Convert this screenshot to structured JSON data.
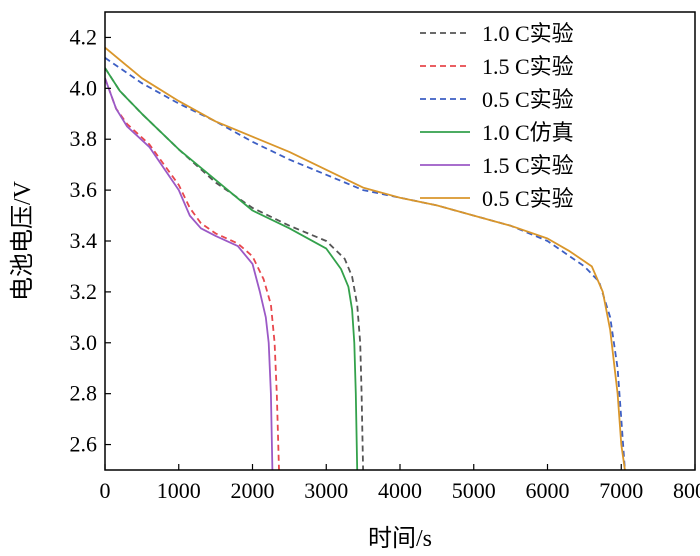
{
  "chart_data": {
    "type": "line",
    "title": "",
    "xlabel": "时间/s",
    "ylabel": "电池电压/V",
    "xlim": [
      0,
      8000
    ],
    "ylim": [
      2.5,
      4.3
    ],
    "x_ticks": [
      0,
      1000,
      2000,
      3000,
      4000,
      5000,
      6000,
      7000,
      8000
    ],
    "y_ticks": [
      2.6,
      2.8,
      3.0,
      3.2,
      3.4,
      3.6,
      3.8,
      4.0,
      4.2
    ],
    "y_tick_labels": [
      "2.6",
      "2.8",
      "3.0",
      "3.2",
      "3.4",
      "3.6",
      "3.8",
      "4.0",
      "4.2"
    ],
    "grid": false,
    "legend_position": "top-right",
    "series": [
      {
        "name": "1.0 C实验",
        "color": "#555555",
        "style": "dashed",
        "points": [
          [
            0,
            4.08
          ],
          [
            200,
            3.99
          ],
          [
            500,
            3.9
          ],
          [
            1000,
            3.76
          ],
          [
            1500,
            3.63
          ],
          [
            2000,
            3.53
          ],
          [
            2500,
            3.46
          ],
          [
            3000,
            3.4
          ],
          [
            3250,
            3.33
          ],
          [
            3350,
            3.26
          ],
          [
            3420,
            3.15
          ],
          [
            3460,
            3.0
          ],
          [
            3480,
            2.8
          ],
          [
            3500,
            2.5
          ]
        ]
      },
      {
        "name": "1.5 C实验",
        "color": "#e8474c",
        "style": "dashed",
        "points": [
          [
            0,
            4.04
          ],
          [
            150,
            3.92
          ],
          [
            300,
            3.86
          ],
          [
            600,
            3.78
          ],
          [
            1000,
            3.62
          ],
          [
            1150,
            3.53
          ],
          [
            1300,
            3.47
          ],
          [
            1500,
            3.43
          ],
          [
            1800,
            3.39
          ],
          [
            2000,
            3.34
          ],
          [
            2150,
            3.25
          ],
          [
            2250,
            3.15
          ],
          [
            2300,
            3.0
          ],
          [
            2330,
            2.8
          ],
          [
            2360,
            2.5
          ]
        ]
      },
      {
        "name": "0.5 C实验",
        "color": "#3d5fc4",
        "style": "dashed",
        "points": [
          [
            0,
            4.12
          ],
          [
            500,
            4.02
          ],
          [
            1000,
            3.94
          ],
          [
            1500,
            3.87
          ],
          [
            2000,
            3.79
          ],
          [
            2500,
            3.72
          ],
          [
            3000,
            3.66
          ],
          [
            3500,
            3.6
          ],
          [
            4000,
            3.57
          ],
          [
            4500,
            3.54
          ],
          [
            5000,
            3.5
          ],
          [
            5500,
            3.46
          ],
          [
            6000,
            3.4
          ],
          [
            6500,
            3.3
          ],
          [
            6700,
            3.24
          ],
          [
            6850,
            3.1
          ],
          [
            6950,
            2.9
          ],
          [
            7000,
            2.7
          ],
          [
            7050,
            2.5
          ]
        ]
      },
      {
        "name": "1.0 C仿真",
        "color": "#33a14b",
        "style": "solid",
        "points": [
          [
            0,
            4.08
          ],
          [
            200,
            3.99
          ],
          [
            500,
            3.9
          ],
          [
            1000,
            3.76
          ],
          [
            1500,
            3.64
          ],
          [
            2000,
            3.52
          ],
          [
            2500,
            3.45
          ],
          [
            3000,
            3.37
          ],
          [
            3200,
            3.29
          ],
          [
            3300,
            3.22
          ],
          [
            3350,
            3.13
          ],
          [
            3380,
            3.0
          ],
          [
            3400,
            2.8
          ],
          [
            3420,
            2.5
          ]
        ]
      },
      {
        "name": "1.5 C实验",
        "color": "#9b59c6",
        "style": "solid",
        "points": [
          [
            0,
            4.04
          ],
          [
            150,
            3.92
          ],
          [
            300,
            3.85
          ],
          [
            600,
            3.77
          ],
          [
            1000,
            3.6
          ],
          [
            1150,
            3.5
          ],
          [
            1300,
            3.45
          ],
          [
            1500,
            3.42
          ],
          [
            1800,
            3.38
          ],
          [
            2000,
            3.31
          ],
          [
            2100,
            3.2
          ],
          [
            2180,
            3.1
          ],
          [
            2220,
            3.0
          ],
          [
            2250,
            2.8
          ],
          [
            2270,
            2.5
          ]
        ]
      },
      {
        "name": "0.5 C实验",
        "color": "#d9962b",
        "style": "solid",
        "points": [
          [
            0,
            4.16
          ],
          [
            500,
            4.04
          ],
          [
            1000,
            3.95
          ],
          [
            1500,
            3.87
          ],
          [
            2000,
            3.81
          ],
          [
            2500,
            3.75
          ],
          [
            3000,
            3.68
          ],
          [
            3500,
            3.61
          ],
          [
            4000,
            3.57
          ],
          [
            4500,
            3.54
          ],
          [
            5000,
            3.5
          ],
          [
            5500,
            3.46
          ],
          [
            6000,
            3.41
          ],
          [
            6300,
            3.36
          ],
          [
            6600,
            3.3
          ],
          [
            6750,
            3.2
          ],
          [
            6850,
            3.05
          ],
          [
            6950,
            2.8
          ],
          [
            7000,
            2.6
          ],
          [
            7050,
            2.5
          ]
        ]
      }
    ]
  }
}
